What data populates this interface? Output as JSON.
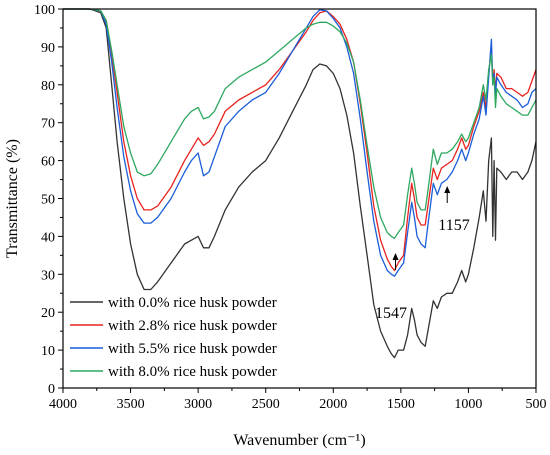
{
  "chart_data": {
    "type": "line",
    "xlabel": "Wavenumber (cm⁻¹)",
    "ylabel": "Transmittance (%)",
    "xlim": [
      4000,
      500
    ],
    "ylim": [
      0,
      100
    ],
    "x_reversed": true,
    "grid": false,
    "legend_position": "bottom-left",
    "xticks": [
      4000,
      3500,
      3000,
      2500,
      2000,
      1500,
      1000,
      500
    ],
    "yticks": [
      0,
      10,
      20,
      30,
      40,
      50,
      60,
      70,
      80,
      90,
      100
    ],
    "series": [
      {
        "name": "with 0.0% rice husk powder",
        "color": "#333333",
        "points": [
          [
            4000,
            100
          ],
          [
            3900,
            100
          ],
          [
            3800,
            100
          ],
          [
            3720,
            99
          ],
          [
            3680,
            95
          ],
          [
            3640,
            80
          ],
          [
            3600,
            65
          ],
          [
            3550,
            50
          ],
          [
            3500,
            38
          ],
          [
            3450,
            30
          ],
          [
            3400,
            26
          ],
          [
            3350,
            26
          ],
          [
            3300,
            28
          ],
          [
            3200,
            33
          ],
          [
            3100,
            38
          ],
          [
            3050,
            39
          ],
          [
            3000,
            40
          ],
          [
            2960,
            37
          ],
          [
            2920,
            37
          ],
          [
            2880,
            40
          ],
          [
            2800,
            47
          ],
          [
            2700,
            53
          ],
          [
            2600,
            57
          ],
          [
            2500,
            60
          ],
          [
            2400,
            66
          ],
          [
            2300,
            73
          ],
          [
            2200,
            80
          ],
          [
            2150,
            84
          ],
          [
            2100,
            85.5
          ],
          [
            2050,
            85
          ],
          [
            2000,
            83
          ],
          [
            1950,
            79
          ],
          [
            1900,
            72
          ],
          [
            1850,
            62
          ],
          [
            1800,
            48
          ],
          [
            1750,
            35
          ],
          [
            1700,
            22
          ],
          [
            1650,
            15
          ],
          [
            1600,
            11
          ],
          [
            1570,
            9
          ],
          [
            1547,
            8
          ],
          [
            1520,
            10
          ],
          [
            1480,
            10
          ],
          [
            1450,
            14
          ],
          [
            1420,
            21
          ],
          [
            1400,
            18
          ],
          [
            1380,
            14
          ],
          [
            1350,
            12
          ],
          [
            1320,
            11
          ],
          [
            1300,
            15
          ],
          [
            1260,
            23
          ],
          [
            1230,
            21
          ],
          [
            1200,
            24
          ],
          [
            1160,
            25
          ],
          [
            1120,
            25
          ],
          [
            1080,
            28
          ],
          [
            1050,
            31
          ],
          [
            1020,
            28
          ],
          [
            1000,
            30
          ],
          [
            960,
            37
          ],
          [
            920,
            45
          ],
          [
            890,
            52
          ],
          [
            870,
            44
          ],
          [
            850,
            60
          ],
          [
            830,
            66
          ],
          [
            820,
            40
          ],
          [
            810,
            60
          ],
          [
            800,
            39
          ],
          [
            790,
            58
          ],
          [
            760,
            57
          ],
          [
            720,
            55
          ],
          [
            680,
            57
          ],
          [
            640,
            57
          ],
          [
            600,
            55
          ],
          [
            560,
            57
          ],
          [
            530,
            60
          ],
          [
            500,
            65
          ]
        ]
      },
      {
        "name": "with 2.8% rice husk powder",
        "color": "#e8231f",
        "points": [
          [
            4000,
            100
          ],
          [
            3900,
            100
          ],
          [
            3800,
            100
          ],
          [
            3720,
            99.5
          ],
          [
            3680,
            97
          ],
          [
            3640,
            88
          ],
          [
            3600,
            78
          ],
          [
            3550,
            65
          ],
          [
            3500,
            56
          ],
          [
            3450,
            50
          ],
          [
            3400,
            47
          ],
          [
            3350,
            47
          ],
          [
            3300,
            48
          ],
          [
            3200,
            53
          ],
          [
            3100,
            60
          ],
          [
            3050,
            63
          ],
          [
            3000,
            66
          ],
          [
            2960,
            64
          ],
          [
            2920,
            65
          ],
          [
            2880,
            67
          ],
          [
            2800,
            73
          ],
          [
            2700,
            76
          ],
          [
            2600,
            78
          ],
          [
            2500,
            80
          ],
          [
            2400,
            84
          ],
          [
            2300,
            89
          ],
          [
            2200,
            94
          ],
          [
            2150,
            97
          ],
          [
            2100,
            99
          ],
          [
            2050,
            99.5
          ],
          [
            2000,
            98
          ],
          [
            1950,
            96
          ],
          [
            1900,
            92
          ],
          [
            1850,
            86
          ],
          [
            1800,
            75
          ],
          [
            1750,
            62
          ],
          [
            1700,
            48
          ],
          [
            1650,
            39
          ],
          [
            1600,
            34
          ],
          [
            1570,
            32
          ],
          [
            1547,
            31
          ],
          [
            1520,
            33
          ],
          [
            1480,
            35
          ],
          [
            1450,
            45
          ],
          [
            1420,
            54
          ],
          [
            1400,
            50
          ],
          [
            1380,
            45
          ],
          [
            1350,
            43
          ],
          [
            1320,
            43
          ],
          [
            1300,
            48
          ],
          [
            1260,
            58
          ],
          [
            1230,
            55
          ],
          [
            1200,
            58
          ],
          [
            1160,
            59
          ],
          [
            1120,
            60
          ],
          [
            1080,
            63
          ],
          [
            1050,
            66
          ],
          [
            1020,
            63
          ],
          [
            1000,
            64
          ],
          [
            960,
            69
          ],
          [
            920,
            73
          ],
          [
            890,
            78
          ],
          [
            870,
            74
          ],
          [
            850,
            83
          ],
          [
            830,
            90
          ],
          [
            820,
            80
          ],
          [
            810,
            84
          ],
          [
            800,
            78
          ],
          [
            790,
            83
          ],
          [
            760,
            82
          ],
          [
            720,
            79
          ],
          [
            680,
            79
          ],
          [
            640,
            78
          ],
          [
            600,
            77
          ],
          [
            560,
            78
          ],
          [
            530,
            81
          ],
          [
            500,
            84
          ]
        ]
      },
      {
        "name": "with 5.5% rice husk powder",
        "color": "#1a5ed8",
        "points": [
          [
            4000,
            100
          ],
          [
            3900,
            100
          ],
          [
            3800,
            100
          ],
          [
            3720,
            99.5
          ],
          [
            3680,
            96
          ],
          [
            3640,
            86
          ],
          [
            3600,
            74
          ],
          [
            3550,
            61
          ],
          [
            3500,
            52
          ],
          [
            3450,
            46
          ],
          [
            3400,
            43.5
          ],
          [
            3350,
            43.5
          ],
          [
            3300,
            45
          ],
          [
            3200,
            50
          ],
          [
            3100,
            57
          ],
          [
            3050,
            60
          ],
          [
            3000,
            62
          ],
          [
            2960,
            56
          ],
          [
            2920,
            57
          ],
          [
            2880,
            61
          ],
          [
            2800,
            69
          ],
          [
            2700,
            73
          ],
          [
            2600,
            76
          ],
          [
            2500,
            78
          ],
          [
            2400,
            83
          ],
          [
            2300,
            89
          ],
          [
            2200,
            95
          ],
          [
            2150,
            98
          ],
          [
            2100,
            99.8
          ],
          [
            2050,
            99.5
          ],
          [
            2000,
            97.5
          ],
          [
            1950,
            95
          ],
          [
            1900,
            90
          ],
          [
            1850,
            83
          ],
          [
            1800,
            71
          ],
          [
            1750,
            57
          ],
          [
            1700,
            44
          ],
          [
            1650,
            35
          ],
          [
            1600,
            31
          ],
          [
            1570,
            30
          ],
          [
            1547,
            29.5
          ],
          [
            1520,
            31
          ],
          [
            1480,
            33
          ],
          [
            1450,
            41
          ],
          [
            1420,
            49
          ],
          [
            1400,
            45
          ],
          [
            1380,
            40
          ],
          [
            1350,
            38
          ],
          [
            1320,
            37
          ],
          [
            1300,
            43
          ],
          [
            1260,
            54
          ],
          [
            1230,
            51
          ],
          [
            1200,
            54
          ],
          [
            1160,
            55
          ],
          [
            1120,
            57
          ],
          [
            1080,
            60
          ],
          [
            1050,
            63
          ],
          [
            1020,
            60
          ],
          [
            1000,
            62
          ],
          [
            960,
            67
          ],
          [
            920,
            71
          ],
          [
            890,
            77
          ],
          [
            870,
            72
          ],
          [
            850,
            82
          ],
          [
            830,
            92
          ],
          [
            820,
            80
          ],
          [
            810,
            83
          ],
          [
            800,
            77
          ],
          [
            790,
            82
          ],
          [
            760,
            80
          ],
          [
            720,
            78
          ],
          [
            680,
            77
          ],
          [
            640,
            76
          ],
          [
            600,
            74
          ],
          [
            560,
            75
          ],
          [
            530,
            78
          ],
          [
            500,
            79
          ]
        ]
      },
      {
        "name": "with 8.0% rice husk powder",
        "color": "#2ea860",
        "points": [
          [
            4000,
            100
          ],
          [
            3900,
            100
          ],
          [
            3800,
            100
          ],
          [
            3720,
            99.5
          ],
          [
            3680,
            97
          ],
          [
            3640,
            89
          ],
          [
            3600,
            80
          ],
          [
            3550,
            69
          ],
          [
            3500,
            62
          ],
          [
            3450,
            57
          ],
          [
            3400,
            56
          ],
          [
            3350,
            56.5
          ],
          [
            3300,
            59
          ],
          [
            3200,
            65
          ],
          [
            3100,
            71
          ],
          [
            3050,
            73
          ],
          [
            3000,
            74
          ],
          [
            2960,
            71
          ],
          [
            2920,
            71.5
          ],
          [
            2880,
            73
          ],
          [
            2800,
            79
          ],
          [
            2700,
            82
          ],
          [
            2600,
            84
          ],
          [
            2500,
            86
          ],
          [
            2400,
            89
          ],
          [
            2300,
            92
          ],
          [
            2200,
            95
          ],
          [
            2150,
            96
          ],
          [
            2100,
            96.5
          ],
          [
            2050,
            96.5
          ],
          [
            2000,
            95.5
          ],
          [
            1950,
            94
          ],
          [
            1900,
            91
          ],
          [
            1850,
            86
          ],
          [
            1800,
            76
          ],
          [
            1750,
            64
          ],
          [
            1700,
            53
          ],
          [
            1650,
            45
          ],
          [
            1600,
            41
          ],
          [
            1570,
            40
          ],
          [
            1547,
            39.5
          ],
          [
            1520,
            41
          ],
          [
            1480,
            43
          ],
          [
            1450,
            51
          ],
          [
            1420,
            58
          ],
          [
            1400,
            54
          ],
          [
            1380,
            49
          ],
          [
            1350,
            47
          ],
          [
            1320,
            47
          ],
          [
            1300,
            52
          ],
          [
            1260,
            63
          ],
          [
            1230,
            59
          ],
          [
            1200,
            62
          ],
          [
            1160,
            62
          ],
          [
            1120,
            63
          ],
          [
            1080,
            65
          ],
          [
            1050,
            67
          ],
          [
            1020,
            65
          ],
          [
            1000,
            66
          ],
          [
            960,
            70
          ],
          [
            920,
            74
          ],
          [
            890,
            80
          ],
          [
            870,
            76
          ],
          [
            850,
            84
          ],
          [
            830,
            88
          ],
          [
            820,
            80
          ],
          [
            810,
            82
          ],
          [
            800,
            74
          ],
          [
            790,
            79
          ],
          [
            760,
            77
          ],
          [
            720,
            75
          ],
          [
            680,
            74
          ],
          [
            640,
            73
          ],
          [
            600,
            72
          ],
          [
            560,
            72
          ],
          [
            530,
            74
          ],
          [
            500,
            76
          ]
        ]
      }
    ],
    "annotations": [
      {
        "text": "1547",
        "x": 1547,
        "y": 31
      },
      {
        "text": "1157",
        "x": 1157,
        "y": 56
      }
    ]
  }
}
